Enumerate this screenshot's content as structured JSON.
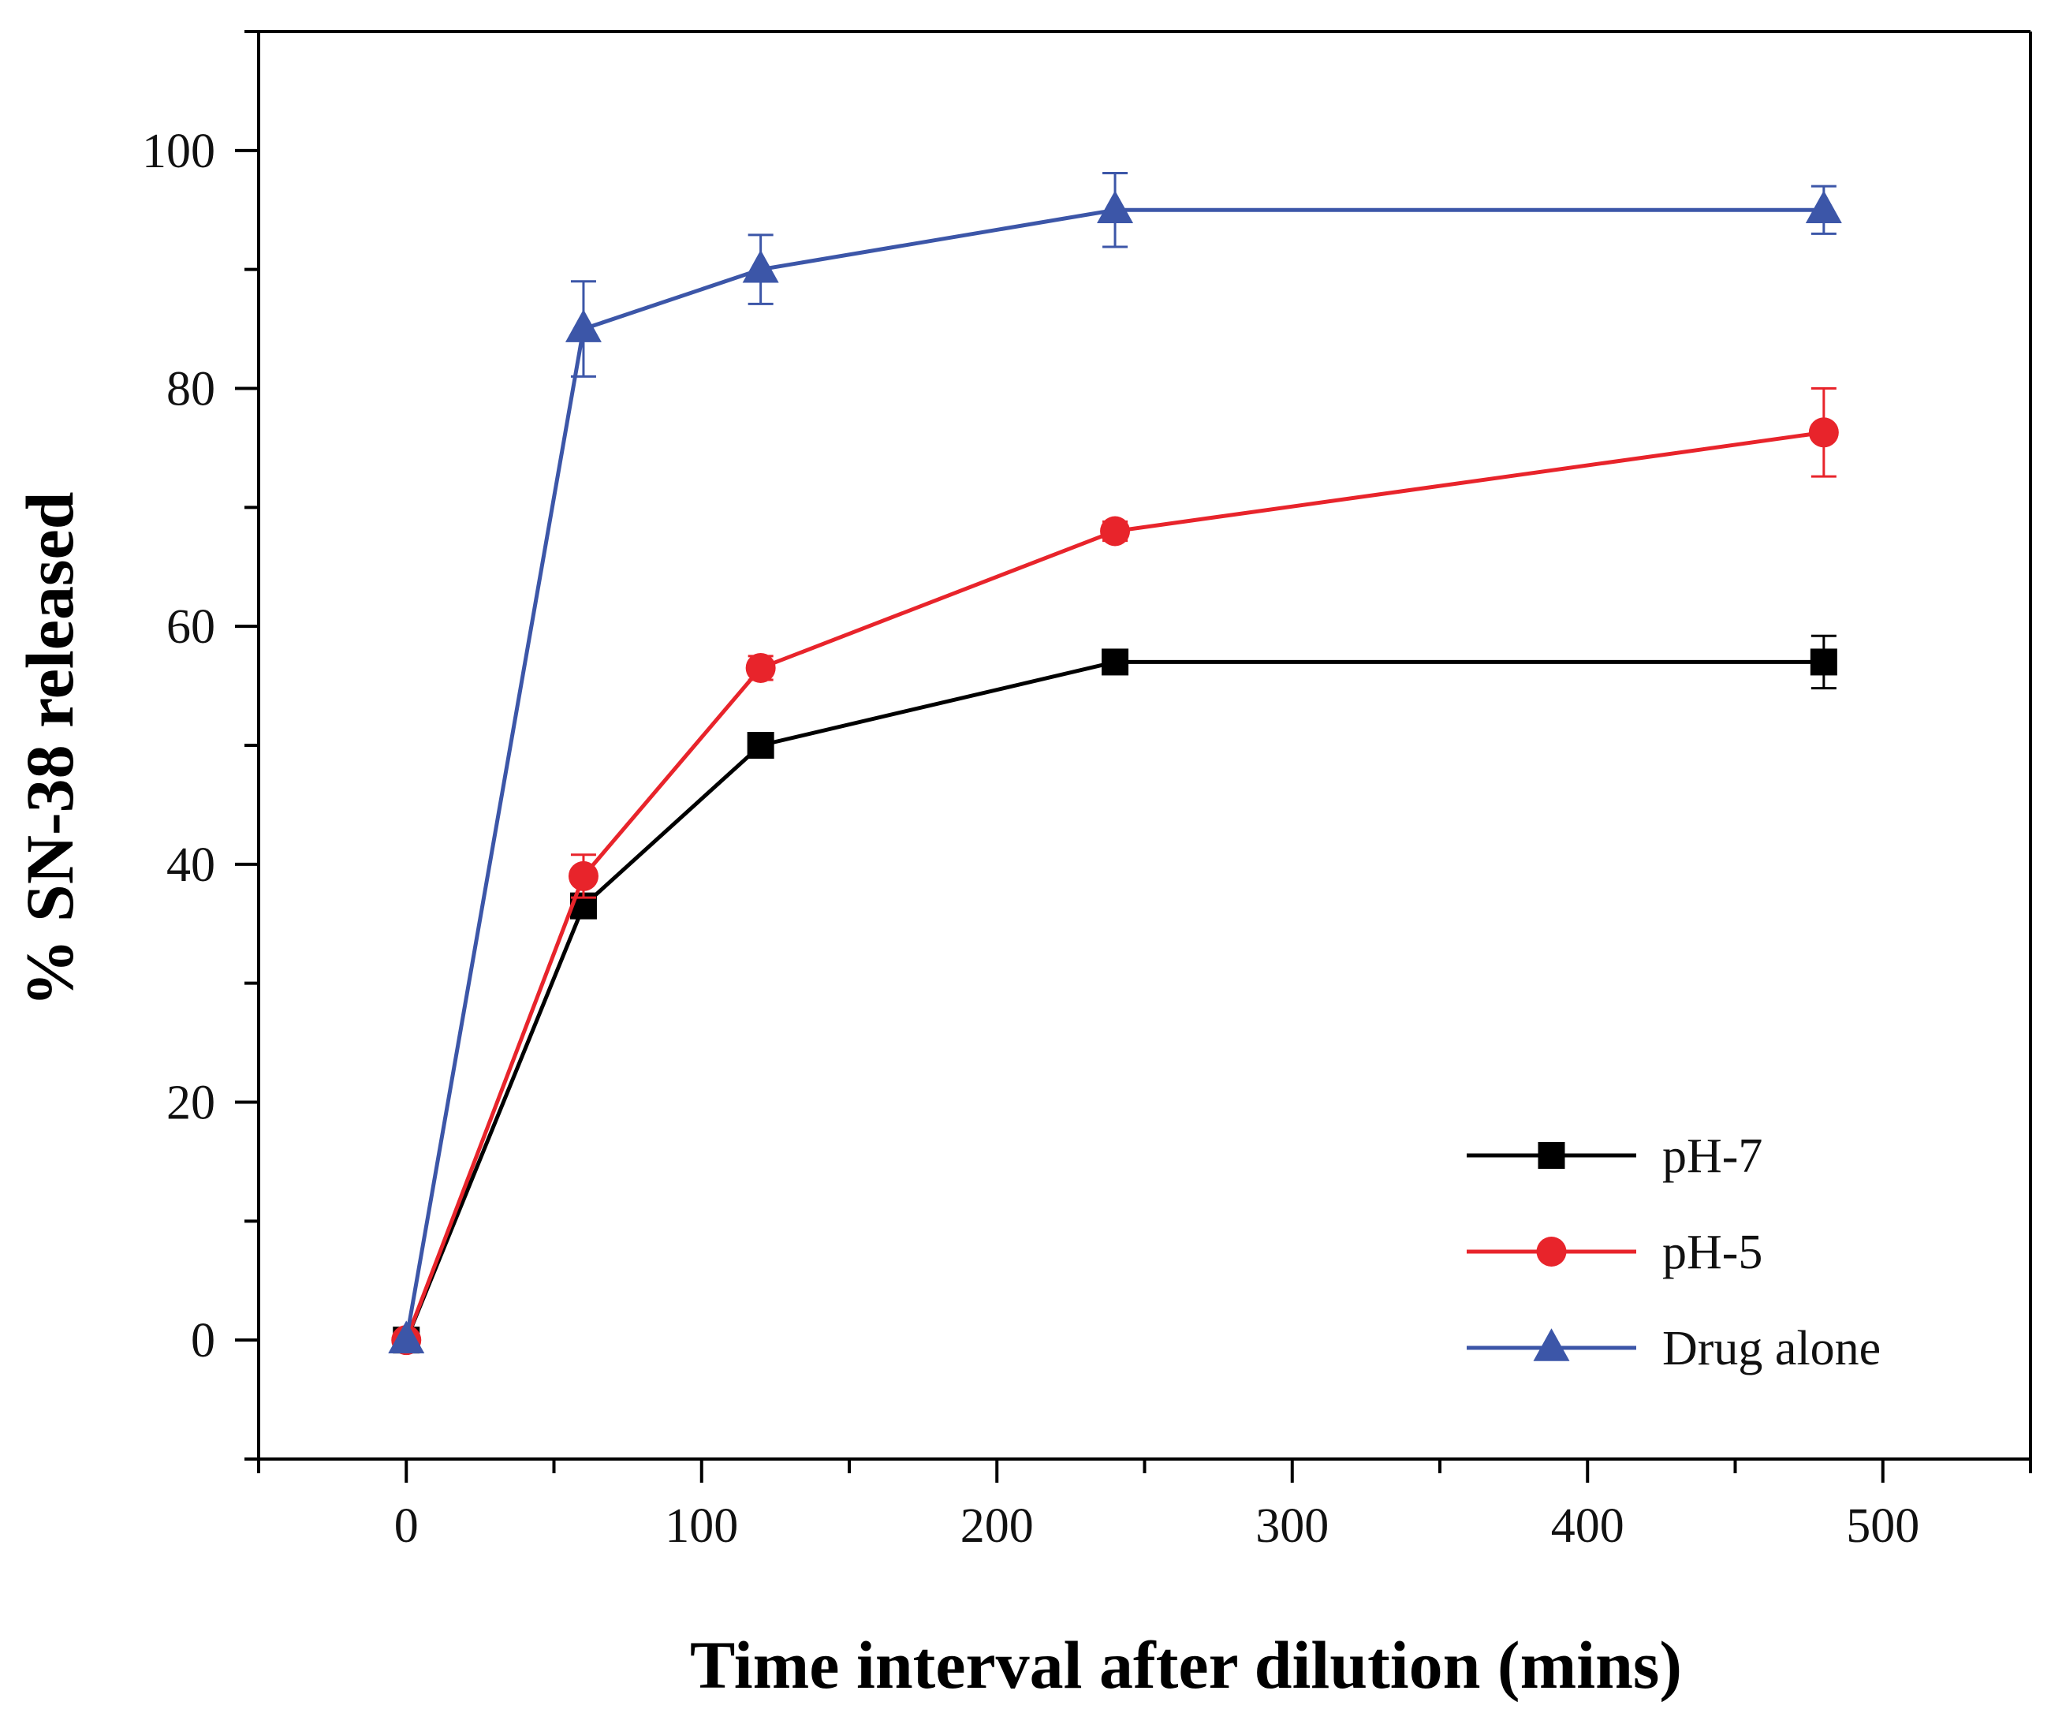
{
  "chart_data": {
    "type": "line",
    "title": "",
    "xlabel": "Time interval after dilution (mins)",
    "ylabel": "% SN-38 released",
    "xlim": [
      -50,
      550
    ],
    "ylim": [
      -10,
      110
    ],
    "xticks": [
      0,
      100,
      200,
      300,
      400,
      500
    ],
    "xtick_labels": [
      "0",
      "100",
      "200",
      "300",
      "400",
      "500"
    ],
    "yticks": [
      0,
      20,
      40,
      60,
      80,
      100
    ],
    "ytick_labels": [
      "0",
      "20",
      "40",
      "60",
      "80",
      "100"
    ],
    "grid": false,
    "legend_position": "bottom-right",
    "x": [
      0,
      60,
      120,
      240,
      480
    ],
    "series": [
      {
        "name": "pH-7",
        "color": "#000000",
        "marker": "square",
        "values": [
          0,
          36.5,
          50,
          57,
          57
        ],
        "errors": [
          0,
          0.8,
          1.0,
          0.8,
          2.2
        ]
      },
      {
        "name": "pH-5",
        "color": "#e8242b",
        "marker": "circle",
        "values": [
          0,
          39,
          56.5,
          68,
          76.3
        ],
        "errors": [
          0,
          1.8,
          1.0,
          0.8,
          3.7
        ]
      },
      {
        "name": "Drug alone",
        "color": "#3c56a8",
        "marker": "triangle",
        "values": [
          0,
          85,
          90,
          95,
          95
        ],
        "errors": [
          0,
          4.0,
          2.9,
          3.1,
          2.0
        ]
      }
    ]
  }
}
